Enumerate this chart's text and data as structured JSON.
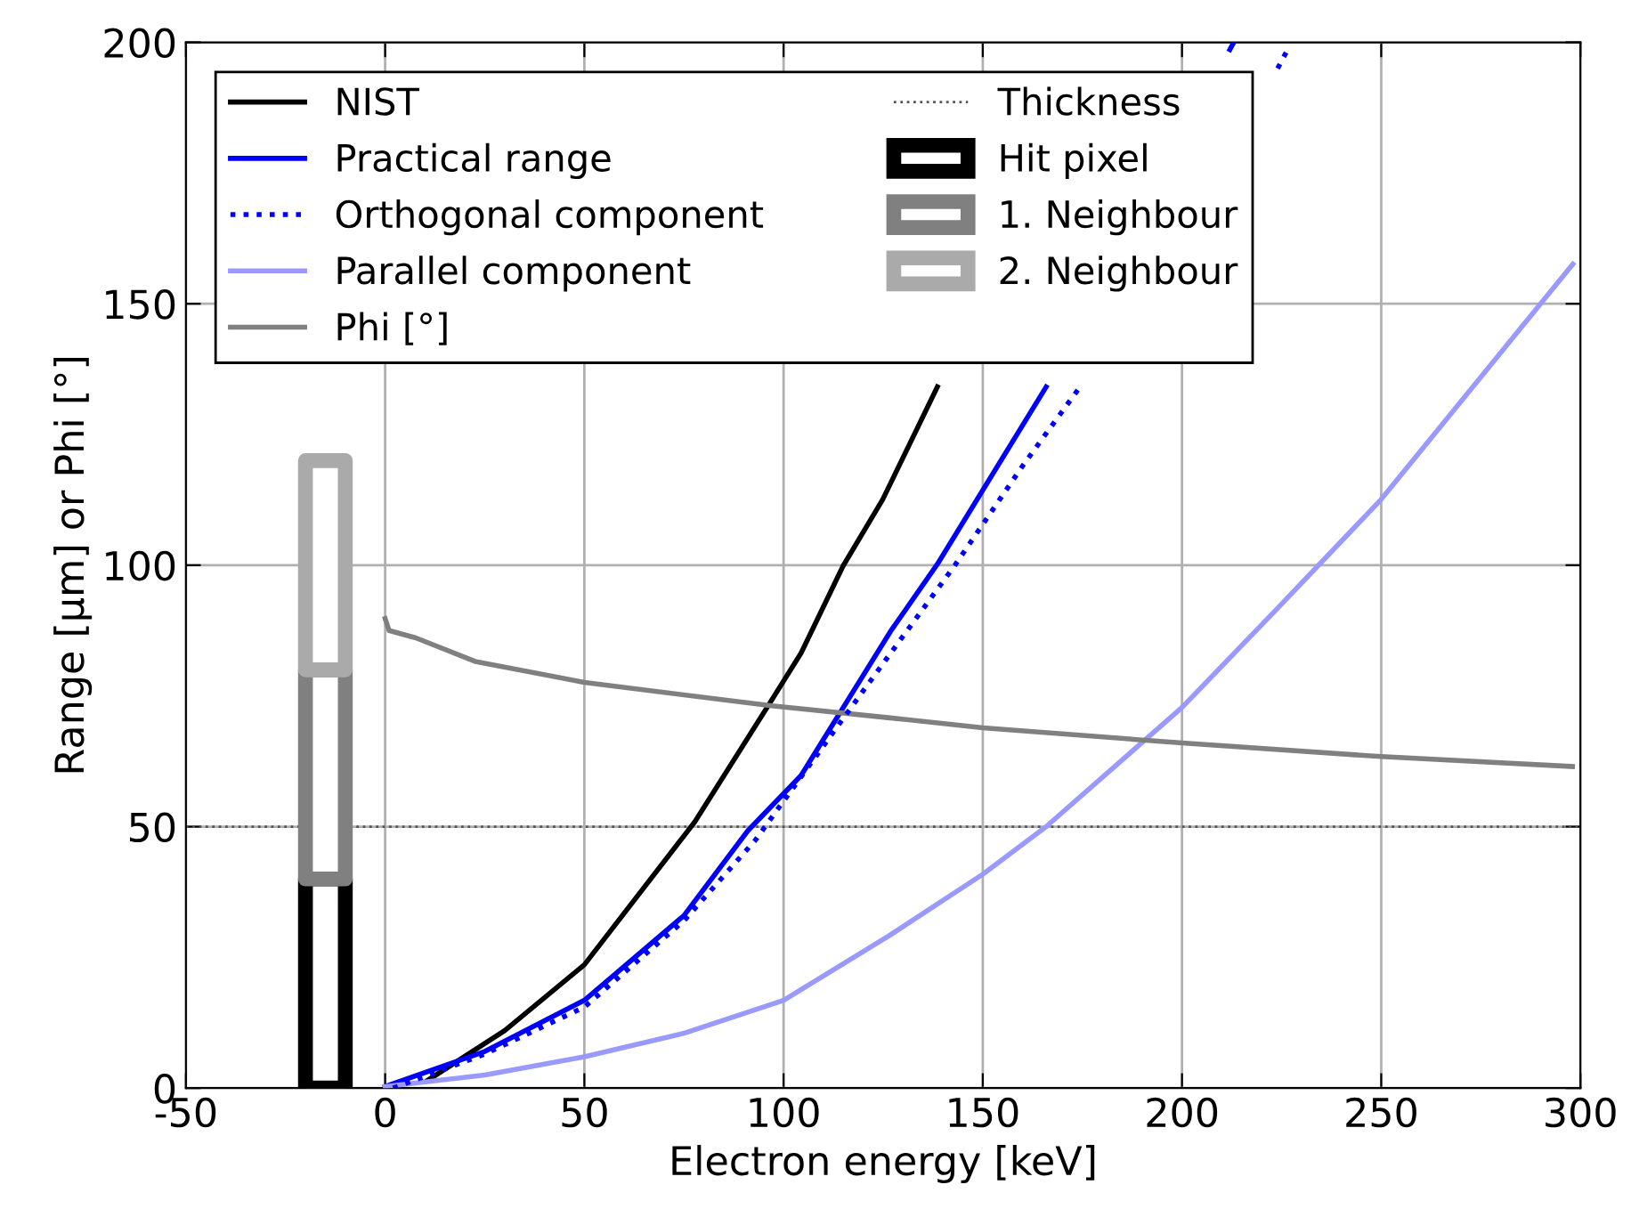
{
  "chart_data": {
    "type": "line",
    "xlabel": "Electron energy [keV]",
    "ylabel": "Range [μm] or Phi [°]",
    "xlim": [
      -50,
      300
    ],
    "xticks": [
      -50,
      0,
      50,
      100,
      150,
      200,
      250,
      300
    ],
    "ylim": [
      0,
      200
    ],
    "yticks": [
      0,
      50,
      100,
      150,
      200
    ],
    "grid": true,
    "legend": "top left",
    "series": [
      {
        "name": "NIST",
        "color": "#000000",
        "line_style": "solid",
        "x": [
          10.7,
          30,
          50,
          77.7,
          97,
          104.4,
          114.9,
          124.9,
          138.6
        ],
        "values": [
          1.5,
          11,
          23.6,
          50.9,
          74.2,
          83.2,
          99.8,
          112.6,
          134.1
        ]
      },
      {
        "name": "Practical range",
        "color": "#0000ff",
        "line_style": "solid",
        "x": [
          0,
          25,
          50,
          75,
          91,
          104.4,
          126.8,
          138.6,
          165.9,
          190,
          212,
          213
        ],
        "values": [
          0.3,
          7,
          16.8,
          33,
          49.2,
          59.8,
          87.3,
          100.2,
          134.1,
          null,
          198.6,
          200
        ]
      },
      {
        "name": "Orthogonal component",
        "color": "#0000ff",
        "line_style": "dotted",
        "x": [
          2,
          25,
          50,
          75,
          93,
          120,
          143,
          160,
          174.4,
          200,
          224,
          226.5
        ],
        "values": [
          0,
          6.5,
          15.5,
          32,
          47.5,
          76,
          100,
          119,
          134.1,
          null,
          195,
          198.6
        ]
      },
      {
        "name": "Parallel component",
        "color": "#9999ff",
        "line_style": "solid",
        "x": [
          0,
          25,
          50,
          75,
          100,
          126.8,
          150,
          165.9,
          200,
          223.9,
          250,
          298.1
        ],
        "values": [
          0.3,
          2.5,
          6,
          10.5,
          16.8,
          29.3,
          40.9,
          50,
          72.8,
          91.7,
          112.6,
          157.6
        ]
      },
      {
        "name": "Phi [°]",
        "color": "#808080",
        "line_style": "solid",
        "x": [
          0,
          1,
          7.7,
          22.6,
          50,
          97,
          126.8,
          150,
          200,
          250,
          298
        ],
        "values": [
          89.8,
          87.5,
          86.1,
          81.6,
          77.6,
          73.1,
          70.8,
          68.9,
          66,
          63.4,
          61.5
        ]
      },
      {
        "name": "Hit pixel",
        "type": "bar",
        "color": "#000000",
        "x": [
          -15
        ],
        "base": [
          0
        ],
        "values": [
          40
        ]
      },
      {
        "name": "1. Neighbour",
        "type": "bar",
        "color": "#808080",
        "x": [
          -15
        ],
        "base": [
          40
        ],
        "values": [
          40
        ]
      },
      {
        "name": "2. Neighbour",
        "type": "bar",
        "color": "#aaaaaa",
        "x": [
          -15
        ],
        "base": [
          80
        ],
        "values": [
          40
        ]
      }
    ],
    "ref_lines": [
      {
        "axis": "y",
        "value": 50,
        "label": "Thickness",
        "color": "#555555",
        "line_style": "dotted"
      }
    ]
  }
}
